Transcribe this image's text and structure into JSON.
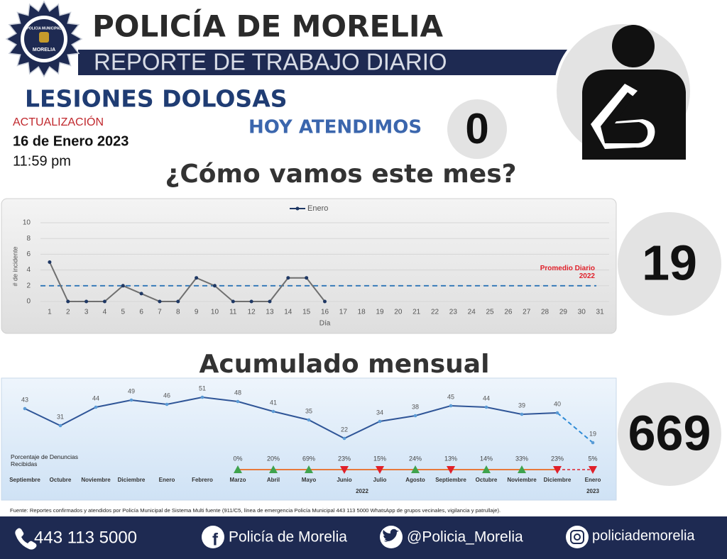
{
  "header": {
    "badge_top": "POLICIA MUNICIPAL",
    "badge_bottom": "MORELIA",
    "title": "POLICÍA DE MORELIA",
    "subtitle": "REPORTE DE TRABAJO DIARIO",
    "crime": "LESIONES DOLOSAS",
    "update_label": "ACTUALIZACIÓN",
    "update_date": "16 de Enero 2023",
    "update_time": "11:59 pm"
  },
  "summary": {
    "today_label": "HOY ATENDIMOS",
    "today_value": 0,
    "month_title": "¿Cómo vamos este mes?",
    "month_total": 19,
    "accumulated_total": 669
  },
  "chart_data": [
    {
      "type": "line",
      "x": [
        1,
        2,
        3,
        4,
        5,
        6,
        7,
        8,
        9,
        10,
        11,
        12,
        13,
        14,
        15,
        16
      ],
      "series": [
        {
          "name": "Enero",
          "color": "#6f6f6f",
          "marker_color": "#1f3864",
          "values": [
            5,
            0,
            0,
            0,
            2,
            1,
            0,
            0,
            3,
            2,
            0,
            0,
            0,
            3,
            3,
            0
          ]
        }
      ],
      "xlim": [
        0.5,
        31.5
      ],
      "xticks": [
        1,
        2,
        3,
        4,
        5,
        6,
        7,
        8,
        9,
        10,
        11,
        12,
        13,
        14,
        15,
        16,
        17,
        18,
        19,
        20,
        21,
        22,
        23,
        24,
        25,
        26,
        27,
        28,
        29,
        30,
        31
      ],
      "ylim": [
        0,
        10
      ],
      "yticks": [
        0,
        2,
        4,
        6,
        8,
        10
      ],
      "xlabel": "Día",
      "ylabel": "# de incidente",
      "grid": true,
      "legend": "top",
      "reference_line": {
        "value": 2,
        "label": "Promedio Diario 2022",
        "color": "#2e75b6",
        "label_color": "#e0202a"
      }
    },
    {
      "type": "line",
      "title": "Acumulado mensual",
      "categories": [
        "Septiembre",
        "Octubre",
        "Noviembre",
        "Diciembre",
        "Enero",
        "Febrero",
        "Marzo",
        "Abril",
        "Mayo",
        "Junio",
        "Julio",
        "Agosto",
        "Septiembre",
        "Octubre",
        "Noviembre",
        "Diciembre",
        "Enero"
      ],
      "series": [
        {
          "color": "#2f5597",
          "values": [
            43,
            31,
            44,
            49,
            46,
            51,
            48,
            41,
            35,
            22,
            34,
            38,
            45,
            44,
            39,
            40,
            19
          ],
          "dashed_last_segment": true
        }
      ],
      "year_groups": [
        {
          "label": "2022",
          "from": 4,
          "to": 15
        },
        {
          "label": "2023",
          "from": 16,
          "to": 16
        }
      ],
      "percent_series": {
        "name": "Porcentaje de Denuncias Recibidas",
        "values": [
          null,
          null,
          null,
          null,
          null,
          null,
          0,
          20,
          69,
          23,
          15,
          24,
          13,
          14,
          33,
          23,
          5
        ],
        "value_labels": [
          null,
          null,
          null,
          null,
          null,
          null,
          "0%",
          "20%",
          "69%",
          "23%",
          "15%",
          "24%",
          "13%",
          "14%",
          "33%",
          "23%",
          "5%"
        ],
        "directions": [
          null,
          null,
          null,
          null,
          null,
          null,
          "up",
          "up",
          "up",
          "down",
          "down",
          "up",
          "down",
          "up",
          "up",
          "down",
          "down"
        ],
        "up_color": "#3fa34d",
        "down_color": "#e0202a",
        "line_color": "#e8793a"
      }
    }
  ],
  "footer": {
    "source": "Fuente: Reportes confirmados y atendidos por Policía Municipal de Sistema Multi fuente (911/C5, línea de emergencia Policía Municipal 443 113 5000 WhatsApp de grupos vecinales, vigilancia y patrullaje).",
    "phone": "443 113 5000",
    "facebook": "Policía de Morelia",
    "twitter": "@Policia_Morelia",
    "instagram": "policiademorelia"
  }
}
